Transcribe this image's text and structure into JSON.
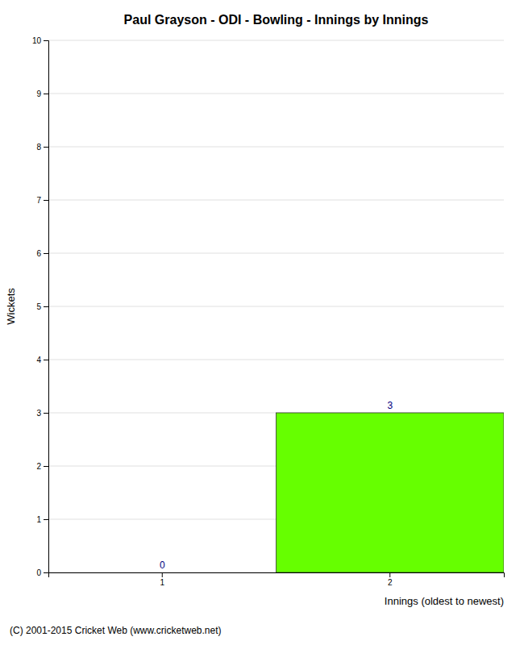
{
  "chart_data": {
    "type": "bar",
    "title": "Paul Grayson - ODI - Bowling - Innings by Innings",
    "xlabel": "Innings (oldest to newest)",
    "ylabel": "Wickets",
    "categories": [
      1,
      2
    ],
    "values": [
      0,
      3
    ],
    "color": "#66ff00",
    "ylim": [
      0,
      10
    ],
    "yticks": [
      0,
      1,
      2,
      3,
      4,
      5,
      6,
      7,
      8,
      9,
      10
    ],
    "grid": true,
    "data_labels": true,
    "footer": "(C) 2001-2015 Cricket Web (www.cricketweb.net)"
  }
}
